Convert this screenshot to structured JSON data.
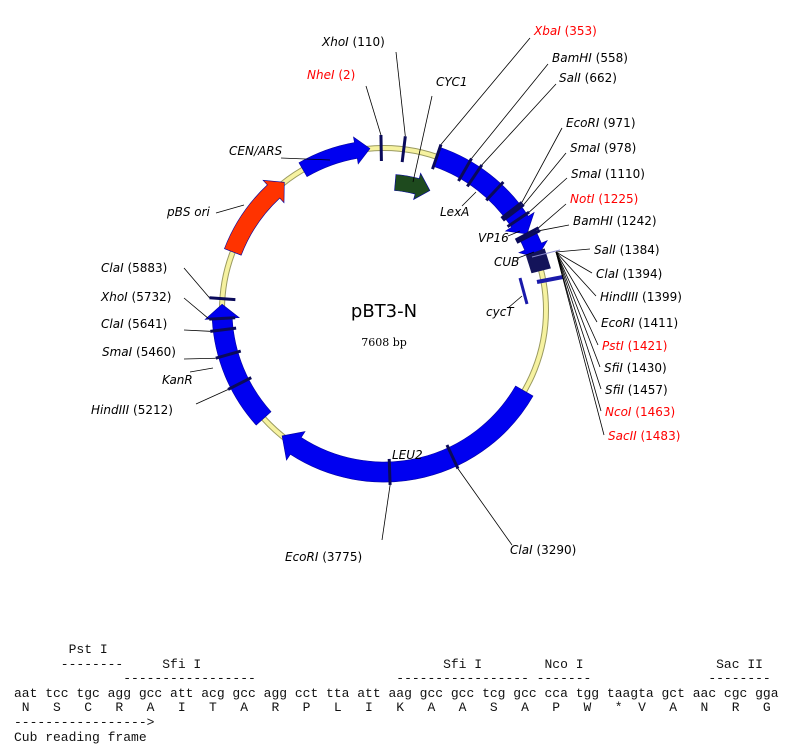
{
  "map": {
    "title": "pBT3-N",
    "size": "7608 bp",
    "colors": {
      "feature": "#0000f0",
      "origin": "#ff3300",
      "promoter": "#1e4a1e",
      "cub": "#14145a",
      "site_tick": "#0a0a5a",
      "backbone": "#f6f2a0",
      "highlight_label": "#ff0000"
    },
    "sites": [
      {
        "name": "NheI",
        "pos": "(2)",
        "color": "#ff0000"
      },
      {
        "name": "XhoI",
        "pos": "(110)",
        "color": "#000000"
      },
      {
        "name": "XbaI",
        "pos": "(353)",
        "color": "#ff0000"
      },
      {
        "name": "BamHI",
        "pos": "(558)",
        "color": "#000000"
      },
      {
        "name": "SalI",
        "pos": "(662)",
        "color": "#000000"
      },
      {
        "name": "EcoRI",
        "pos": "(971)",
        "color": "#000000"
      },
      {
        "name": "SmaI",
        "pos": "(978)",
        "color": "#000000"
      },
      {
        "name": "SmaI",
        "pos": "(1110)",
        "color": "#000000"
      },
      {
        "name": "NotI",
        "pos": "(1225)",
        "color": "#ff0000"
      },
      {
        "name": "BamHI",
        "pos": "(1242)",
        "color": "#000000"
      },
      {
        "name": "SalI",
        "pos": "(1384)",
        "color": "#000000"
      },
      {
        "name": "ClaI",
        "pos": "(1394)",
        "color": "#000000"
      },
      {
        "name": "HindIII",
        "pos": "(1399)",
        "color": "#000000"
      },
      {
        "name": "EcoRI",
        "pos": "(1411)",
        "color": "#000000"
      },
      {
        "name": "PstI",
        "pos": "(1421)",
        "color": "#ff0000"
      },
      {
        "name": "SfiI",
        "pos": "(1430)",
        "color": "#000000"
      },
      {
        "name": "SfiI",
        "pos": "(1457)",
        "color": "#000000"
      },
      {
        "name": "NcoI",
        "pos": "(1463)",
        "color": "#ff0000"
      },
      {
        "name": "SacII",
        "pos": "(1483)",
        "color": "#ff0000"
      },
      {
        "name": "ClaI",
        "pos": "(3290)",
        "color": "#000000"
      },
      {
        "name": "EcoRI",
        "pos": "(3775)",
        "color": "#000000"
      },
      {
        "name": "HindIII",
        "pos": "(5212)",
        "color": "#000000"
      },
      {
        "name": "SmaI",
        "pos": "(5460)",
        "color": "#000000"
      },
      {
        "name": "ClaI",
        "pos": "(5641)",
        "color": "#000000"
      },
      {
        "name": "XhoI",
        "pos": "(5732)",
        "color": "#000000"
      },
      {
        "name": "ClaI",
        "pos": "(5883)",
        "color": "#000000"
      }
    ],
    "features": [
      {
        "label": "CEN/ARS"
      },
      {
        "label": "pBS ori"
      },
      {
        "label": "CYC1"
      },
      {
        "label": "LexA"
      },
      {
        "label": "VP16"
      },
      {
        "label": "CUB"
      },
      {
        "label": "cycT"
      },
      {
        "label": "LEU2"
      },
      {
        "label": "KanR"
      }
    ]
  },
  "sequence": {
    "lines": [
      "       Pst I",
      "      --------     Sfi I                               Sfi I        Nco I                 Sac II",
      "              -----------------                  ----------------- -------               --------",
      "aat tcc tgc agg gcc att acg gcc agg cct tta att aag gcc gcc tcg gcc cca tgg taagta gct aac cgc gga",
      " N   S   C   R   A   I   T   A   R   P   L   I   K   A   A   S   A   P   W   *  V   A   N   R   G",
      "----------------->",
      "Cub reading frame"
    ]
  }
}
